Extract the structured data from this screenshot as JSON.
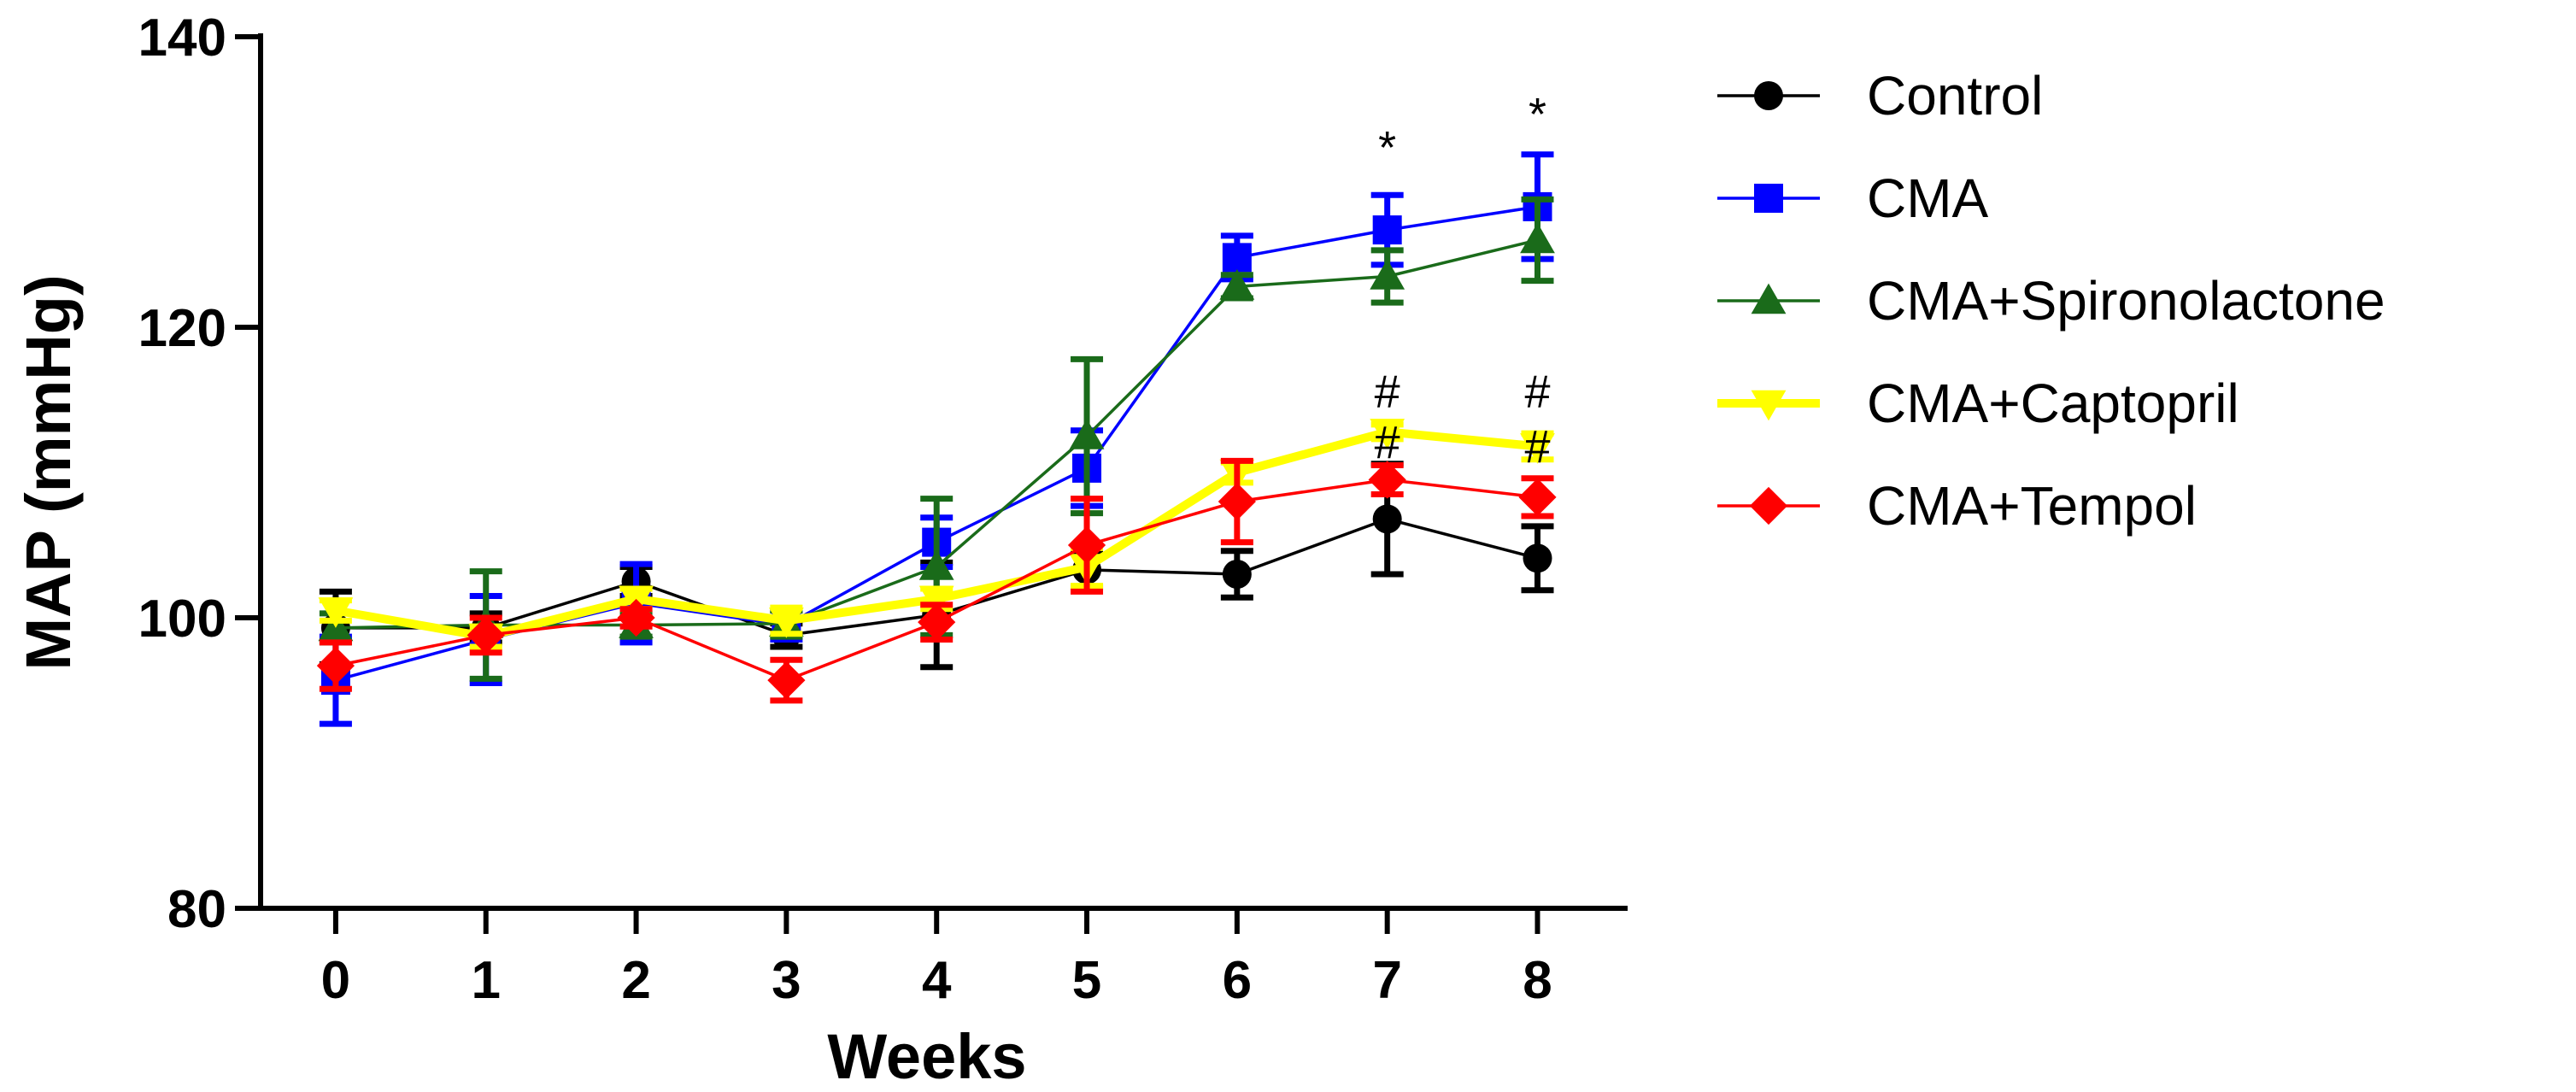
{
  "chart_data": {
    "type": "line",
    "title": "",
    "xlabel": "Weeks",
    "ylabel": "MAP (mmHg)",
    "x": [
      0,
      1,
      2,
      3,
      4,
      5,
      6,
      7,
      8
    ],
    "xlim": [
      -0.5,
      8.6
    ],
    "ylim": [
      80,
      140
    ],
    "yticks": [
      80,
      100,
      120,
      140
    ],
    "grid": false,
    "legend_position": "right",
    "series": [
      {
        "name": "Control",
        "color": "#000000",
        "marker": "circle",
        "values": [
          99.3,
          99.3,
          102.5,
          98.8,
          100.2,
          103.3,
          103.0,
          106.8,
          104.1
        ],
        "errors": [
          2.5,
          1.0,
          1.0,
          0.8,
          3.6,
          1.2,
          1.6,
          3.8,
          2.2
        ]
      },
      {
        "name": "CMA",
        "color": "#0000ff",
        "marker": "square",
        "values": [
          95.7,
          98.5,
          101.0,
          99.5,
          105.2,
          110.3,
          124.8,
          126.7,
          128.3
        ],
        "errors": [
          3.0,
          3.0,
          2.7,
          1.0,
          1.7,
          2.6,
          1.5,
          2.4,
          3.6
        ]
      },
      {
        "name": "CMA+Spironolactone",
        "color": "#1a6b1a",
        "marker": "triangle-up",
        "values": [
          99.3,
          99.5,
          99.5,
          99.6,
          103.5,
          112.5,
          122.8,
          123.5,
          126.0
        ],
        "errors": [
          1.0,
          3.7,
          0.8,
          0.9,
          4.7,
          5.3,
          0.8,
          1.8,
          2.8
        ]
      },
      {
        "name": "CMA+Captopril",
        "color": "#ffff00",
        "marker": "triangle-down",
        "values": [
          100.5,
          98.7,
          101.3,
          99.8,
          101.3,
          103.5,
          110.0,
          112.8,
          111.8
        ],
        "errors": [
          0.7,
          0.7,
          0.7,
          0.9,
          0.7,
          1.3,
          0.7,
          0.5,
          0.9
        ]
      },
      {
        "name": "CMA+Tempol",
        "color": "#ff0000",
        "marker": "diamond",
        "values": [
          96.7,
          98.8,
          100.0,
          95.7,
          99.7,
          105.0,
          108.0,
          109.5,
          108.3
        ],
        "errors": [
          1.6,
          1.2,
          0.6,
          1.4,
          1.2,
          3.2,
          2.8,
          1.0,
          1.3
        ]
      }
    ],
    "annotations": [
      {
        "text": "*",
        "x": 7,
        "y": 131.3
      },
      {
        "text": "*",
        "x": 8,
        "y": 133.6
      },
      {
        "text": "#",
        "x": 7,
        "y": 114.5
      },
      {
        "text": "#",
        "x": 8,
        "y": 114.5
      },
      {
        "text": "#",
        "x": 7,
        "y": 111.0
      },
      {
        "text": "#",
        "x": 8,
        "y": 110.7
      }
    ]
  }
}
